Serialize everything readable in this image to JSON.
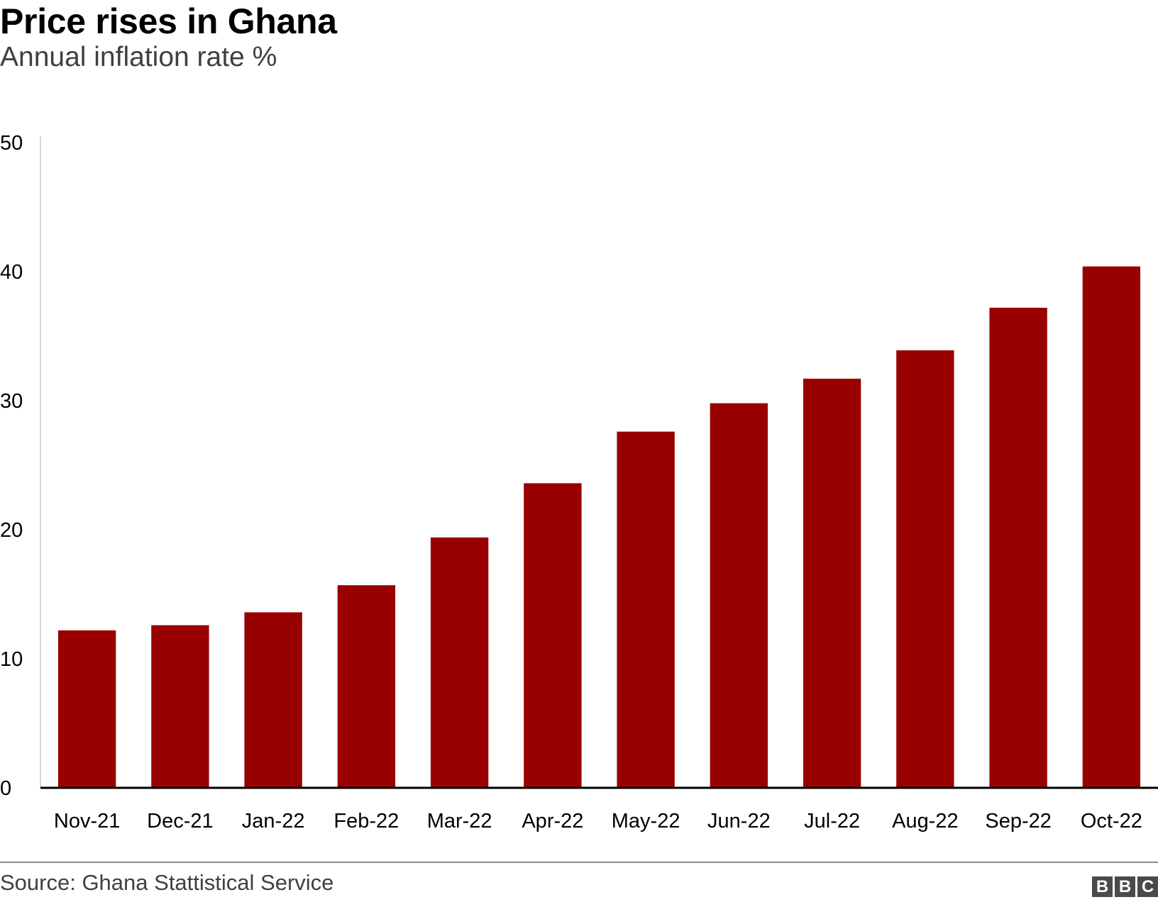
{
  "header": {
    "title": "Price rises in Ghana",
    "subtitle": "Annual inflation rate %"
  },
  "footer": {
    "source": "Source: Ghana Stattistical Service",
    "logo_letters": [
      "B",
      "B",
      "C"
    ]
  },
  "colors": {
    "bar": "#990000",
    "axis": "#000000",
    "text": "#000000",
    "muted_text": "#404040",
    "rule": "#8c8c8c"
  },
  "chart_data": {
    "type": "bar",
    "title": "Price rises in Ghana",
    "subtitle": "Annual inflation rate %",
    "xlabel": "",
    "ylabel": "",
    "categories": [
      "Nov-21",
      "Dec-21",
      "Jan-22",
      "Feb-22",
      "Mar-22",
      "Apr-22",
      "May-22",
      "Jun-22",
      "Jul-22",
      "Aug-22",
      "Sep-22",
      "Oct-22"
    ],
    "series": [
      {
        "name": "Annual inflation rate %",
        "values": [
          12.2,
          12.6,
          13.6,
          15.7,
          19.4,
          23.6,
          27.6,
          29.8,
          31.7,
          33.9,
          37.2,
          40.4
        ]
      }
    ],
    "ylim": [
      0,
      50
    ],
    "yticks": [
      0,
      10,
      20,
      30,
      40,
      50
    ],
    "grid": false,
    "legend": "none",
    "source": "Source: Ghana Stattistical Service"
  }
}
